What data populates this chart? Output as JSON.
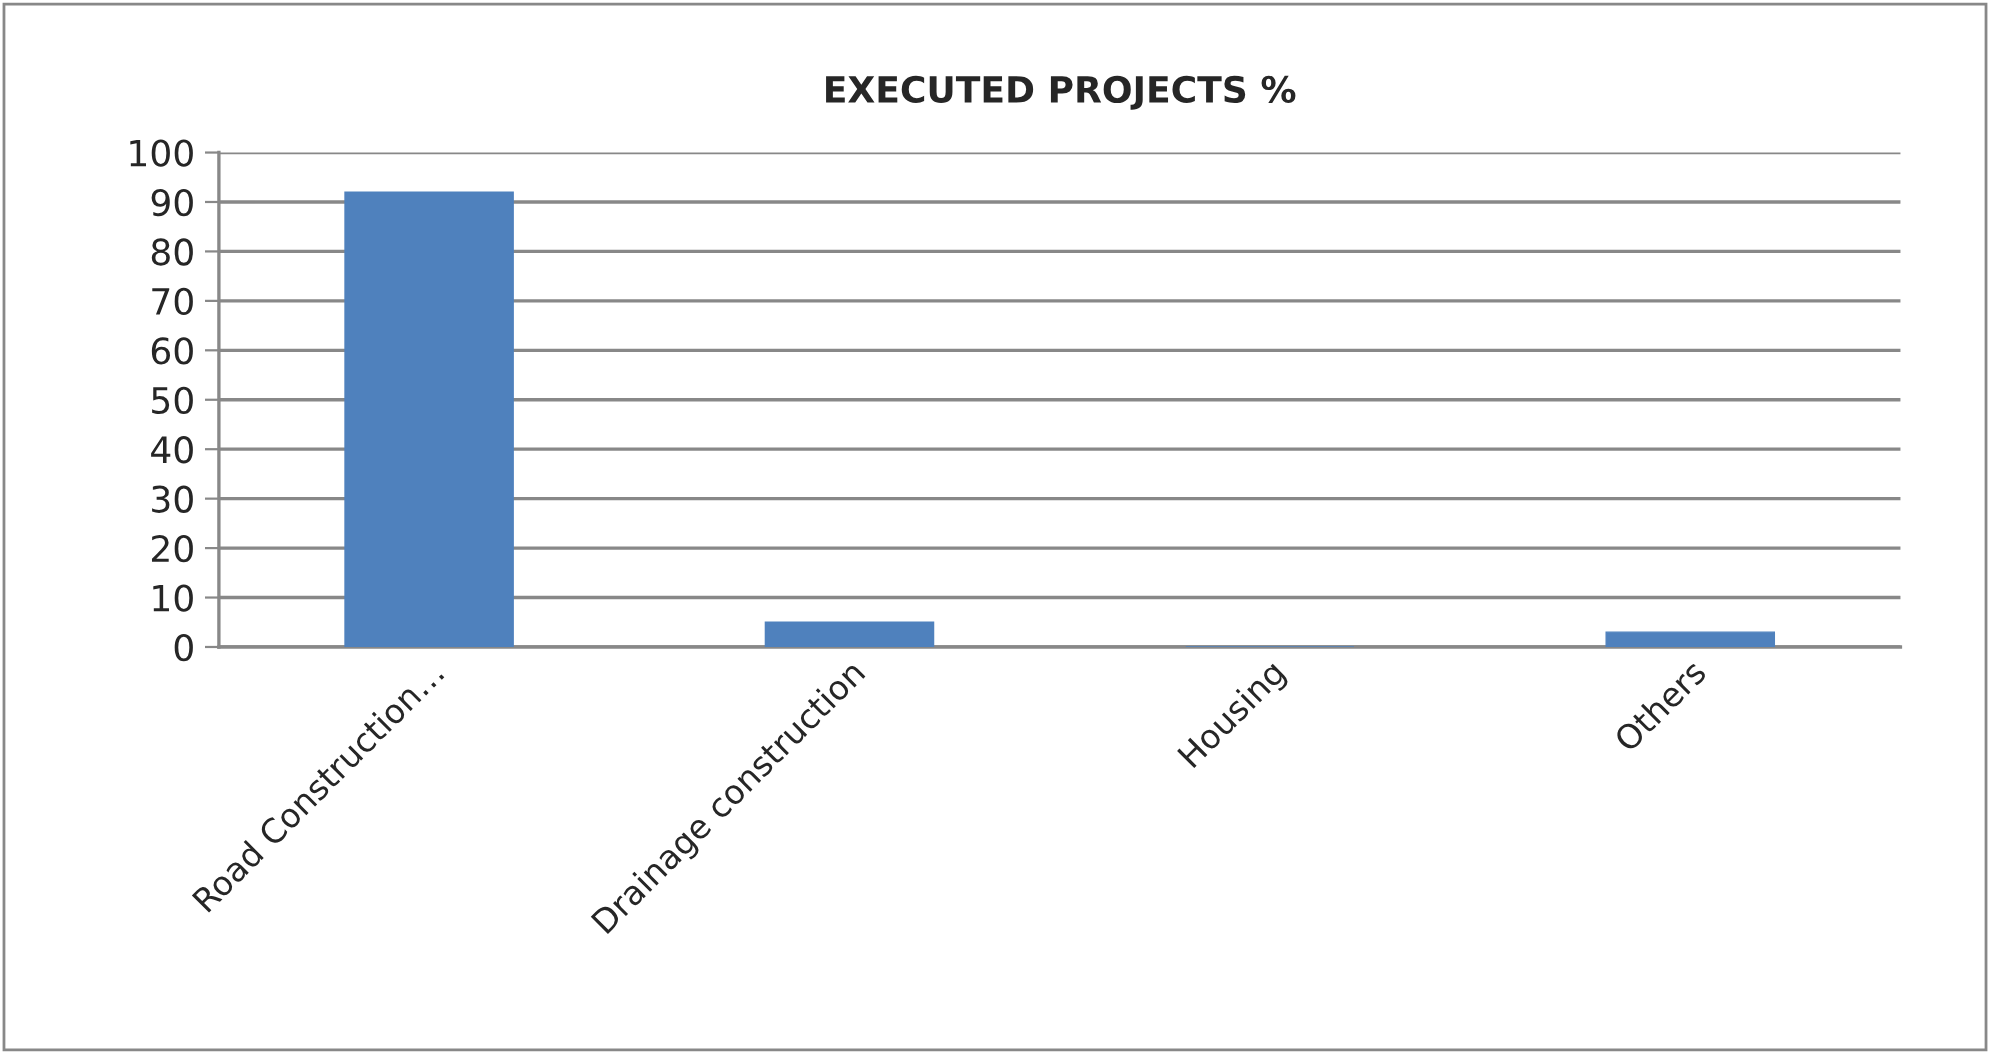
{
  "chart_data": {
    "type": "bar",
    "title": "EXECUTED PROJECTS %",
    "categories": [
      "Road Construction…",
      "Drainage construction",
      "Housing",
      "Others"
    ],
    "values": [
      92,
      5,
      0,
      3
    ],
    "color": "#4f81bd",
    "ylim": [
      0,
      100
    ],
    "yticks": [
      0,
      10,
      20,
      30,
      40,
      50,
      60,
      70,
      80,
      90,
      100
    ],
    "grid": "y"
  }
}
